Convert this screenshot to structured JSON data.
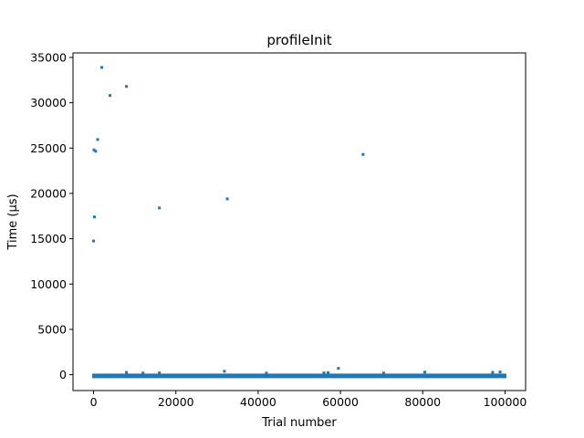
{
  "chart_data": {
    "type": "scatter",
    "title": "profileInit",
    "xlabel": "Trial number",
    "ylabel": "Time (µs)",
    "xlim": [
      -5000,
      105000
    ],
    "ylim": [
      -1750,
      35500
    ],
    "xticks": [
      0,
      20000,
      40000,
      60000,
      80000,
      100000
    ],
    "yticks": [
      0,
      5000,
      10000,
      15000,
      20000,
      25000,
      30000,
      35000
    ],
    "grid": false,
    "color": "#1f77b4",
    "baseline_band": {
      "x_range": [
        0,
        100000
      ],
      "y_range": [
        -100,
        120
      ]
    },
    "points": [
      {
        "x": 0,
        "y": 14750
      },
      {
        "x": 200,
        "y": 17400
      },
      {
        "x": 100,
        "y": 24800
      },
      {
        "x": 500,
        "y": 24650
      },
      {
        "x": 1000,
        "y": 25950
      },
      {
        "x": 2000,
        "y": 33900
      },
      {
        "x": 4000,
        "y": 30800
      },
      {
        "x": 8000,
        "y": 31800
      },
      {
        "x": 16000,
        "y": 18400
      },
      {
        "x": 32500,
        "y": 19400
      },
      {
        "x": 65500,
        "y": 24300
      },
      {
        "x": 59500,
        "y": 700
      },
      {
        "x": 31800,
        "y": 380
      },
      {
        "x": 8000,
        "y": 250
      },
      {
        "x": 12000,
        "y": 180
      },
      {
        "x": 16000,
        "y": 200
      },
      {
        "x": 42000,
        "y": 180
      },
      {
        "x": 56000,
        "y": 200
      },
      {
        "x": 57000,
        "y": 220
      },
      {
        "x": 70500,
        "y": 180
      },
      {
        "x": 80500,
        "y": 280
      },
      {
        "x": 97000,
        "y": 260
      },
      {
        "x": 98800,
        "y": 300
      }
    ]
  }
}
